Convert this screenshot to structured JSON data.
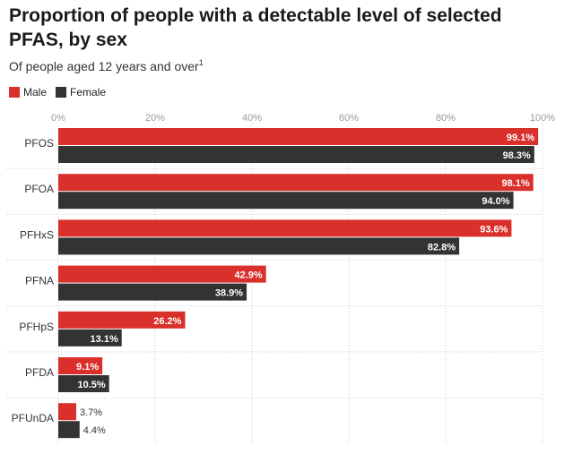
{
  "title": "Proportion of people with a detectable level of selected PFAS, by sex",
  "subtitle": "Of people aged 12 years and over",
  "subtitle_note": "1",
  "colors": {
    "male": "#d9302c",
    "female": "#333333",
    "grid": "#cccccc",
    "tick_text": "#999999"
  },
  "chart_data": {
    "type": "bar",
    "orientation": "horizontal",
    "categories": [
      "PFOS",
      "PFOA",
      "PFHxS",
      "PFNA",
      "PFHpS",
      "PFDA",
      "PFUnDA"
    ],
    "series": [
      {
        "name": "Male",
        "values": [
          99.1,
          98.1,
          93.6,
          42.9,
          26.2,
          9.1,
          3.7
        ]
      },
      {
        "name": "Female",
        "values": [
          98.3,
          94.0,
          82.8,
          38.9,
          13.1,
          10.5,
          4.4
        ]
      }
    ],
    "xlim": [
      0,
      100
    ],
    "xticks": [
      "0%",
      "20%",
      "40%",
      "60%",
      "80%",
      "100%"
    ],
    "xtick_values": [
      0,
      20,
      40,
      60,
      80,
      100
    ],
    "value_labels": [
      [
        "99.1%",
        "98.1%",
        "93.6%",
        "42.9%",
        "26.2%",
        "9.1%",
        "3.7%"
      ],
      [
        "98.3%",
        "94.0%",
        "82.8%",
        "38.9%",
        "13.1%",
        "10.5%",
        "4.4%"
      ]
    ],
    "legend_position": "top-left",
    "grid": "vertical dotted"
  }
}
